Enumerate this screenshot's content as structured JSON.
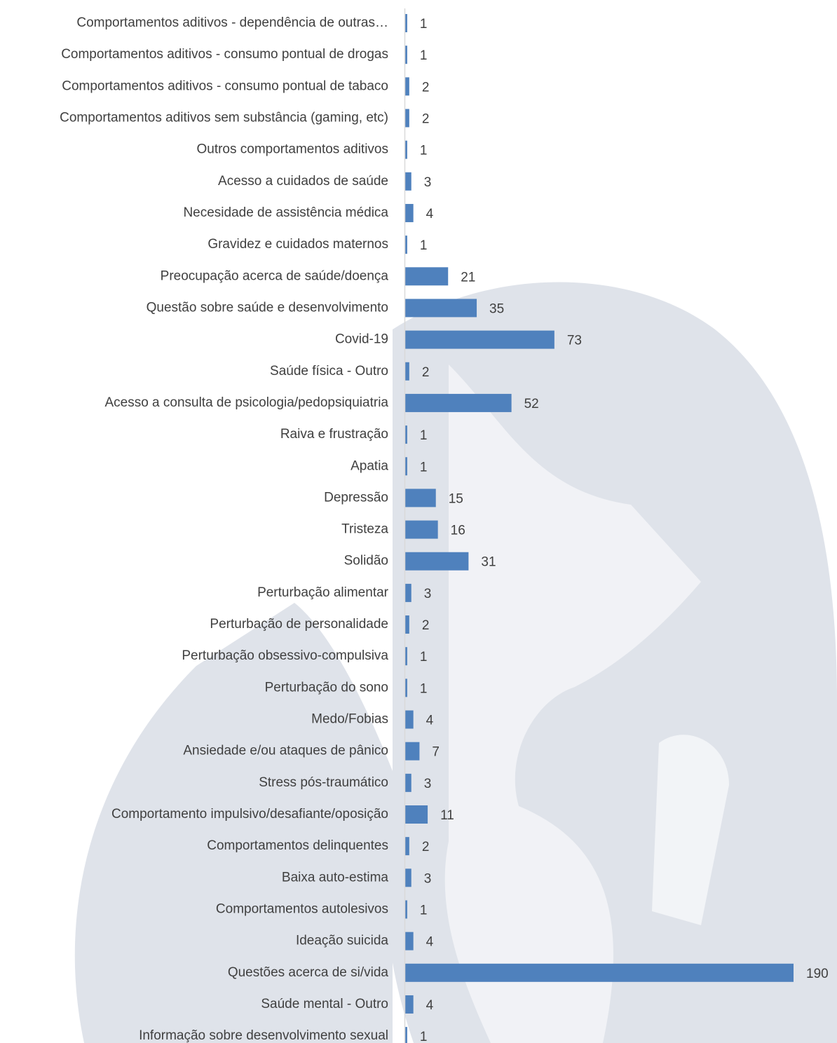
{
  "chart_data": {
    "type": "barh",
    "color": "#4f81bd",
    "xlim": [
      0,
      190
    ],
    "categories": [
      "Comportamentos aditivos - dependência de outras…",
      "Comportamentos aditivos - consumo pontual de drogas",
      "Comportamentos aditivos - consumo pontual de tabaco",
      "Comportamentos aditivos sem substância (gaming, etc)",
      "Outros comportamentos aditivos",
      "Acesso a cuidados de saúde",
      "Necesidade de assistência médica",
      "Gravidez e cuidados maternos",
      "Preocupação acerca de saúde/doença",
      "Questão sobre saúde e desenvolvimento",
      "Covid-19",
      "Saúde física - Outro",
      "Acesso a consulta de psicologia/pedopsiquiatria",
      "Raiva e frustração",
      "Apatia",
      "Depressão",
      "Tristeza",
      "Solidão",
      "Perturbação alimentar",
      "Perturbação de personalidade",
      "Perturbação obsessivo-compulsiva",
      "Perturbação do sono",
      "Medo/Fobias",
      "Ansiedade e/ou ataques de pânico",
      "Stress pós-traumático",
      "Comportamento impulsivo/desafiante/oposição",
      "Comportamentos delinquentes",
      "Baixa auto-estima",
      "Comportamentos autolesivos",
      "Ideação suicida",
      "Questões acerca de si/vida",
      "Saúde mental - Outro",
      "Informação sobre desenvolvimento sexual"
    ],
    "values": [
      1,
      1,
      2,
      2,
      1,
      3,
      4,
      1,
      21,
      35,
      73,
      2,
      52,
      1,
      1,
      15,
      16,
      31,
      3,
      2,
      1,
      1,
      4,
      7,
      3,
      11,
      2,
      3,
      1,
      4,
      190,
      4,
      1
    ]
  }
}
